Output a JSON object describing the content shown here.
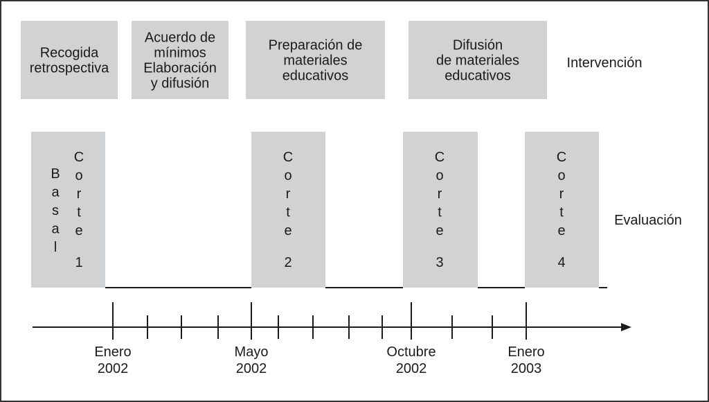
{
  "interventions": [
    {
      "lines": [
        "Recogida",
        "retrospectiva"
      ]
    },
    {
      "lines": [
        "Acuerdo de",
        "mínimos",
        "Elaboración",
        "y difusión"
      ]
    },
    {
      "lines": [
        "Preparación de",
        "materiales",
        "educativos"
      ]
    },
    {
      "lines": [
        "Difusión",
        "de  materiales",
        "educativos"
      ]
    }
  ],
  "row_labels": {
    "intervention": "Intervención",
    "evaluation": "Evaluación"
  },
  "evaluations": [
    {
      "columns": [
        {
          "letters": "Basal",
          "number": ""
        },
        {
          "letters": "Corte",
          "number": "1"
        }
      ]
    },
    {
      "columns": [
        {
          "letters": "Corte",
          "number": "2"
        }
      ]
    },
    {
      "columns": [
        {
          "letters": "Corte",
          "number": "3"
        }
      ]
    },
    {
      "columns": [
        {
          "letters": "Corte",
          "number": "4"
        }
      ]
    }
  ],
  "timeline": {
    "major_ticks": [
      {
        "month": "Enero",
        "year": "2002"
      },
      {
        "month": "Mayo",
        "year": "2002"
      },
      {
        "month": "Octubre",
        "year": "2002"
      },
      {
        "month": "Enero",
        "year": "2003"
      }
    ]
  },
  "colors": {
    "box_fill": "#d1d2d4",
    "line": "#1a1a1a",
    "frame": "#333333"
  }
}
